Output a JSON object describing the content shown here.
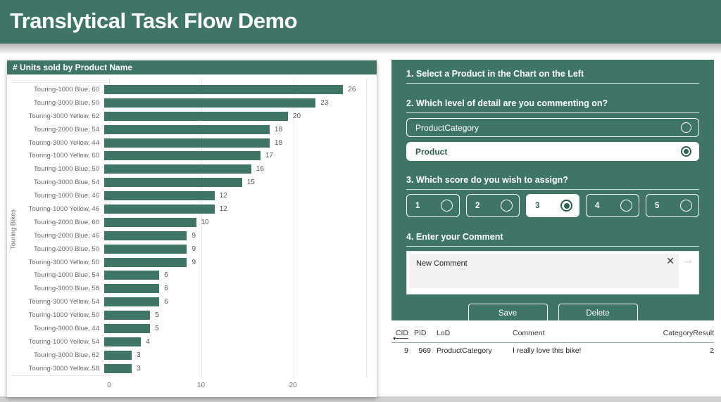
{
  "app": {
    "title": "Translytical Task Flow Demo"
  },
  "colors": {
    "accent_green": "#3e7566",
    "accent_green_dark": "#2b6154",
    "bar_color": "#3e7566",
    "table_rule": "#8fae9f"
  },
  "icons": {
    "clear": "✕",
    "send": "→",
    "sort_desc": "▼",
    "radio_unselected": "circle-outline",
    "radio_selected": "circle-dot"
  },
  "chart_data": {
    "type": "bar",
    "orientation": "horizontal",
    "title": "# Units sold by Product Name",
    "y_axis_title": "Touring Bikes",
    "categories": [
      "Touring-1000 Blue, 60",
      "Touring-3000 Blue, 50",
      "Touring-3000 Yellow, 62",
      "Touring-2000 Blue, 54",
      "Touring-3000 Yellow, 44",
      "Touring-1000 Yellow, 60",
      "Touring-1000 Blue, 50",
      "Touring-3000 Blue, 54",
      "Touring-1000 Blue, 46",
      "Touring-1000 Yellow, 46",
      "Touring-2000 Blue, 60",
      "Touring-2000 Blue, 46",
      "Touring-2000 Blue, 50",
      "Touring-3000 Yellow, 50",
      "Touring-1000 Blue, 54",
      "Touring-3000 Blue, 58",
      "Touring-3000 Yellow, 54",
      "Touring-1000 Yellow, 50",
      "Touring-3000 Blue, 44",
      "Touring-1000 Yellow, 54",
      "Touring-3000 Blue, 62",
      "Touring-3000 Yellow, 58"
    ],
    "values": [
      26,
      23,
      20,
      18,
      18,
      17,
      16,
      15,
      12,
      12,
      10,
      9,
      9,
      9,
      6,
      6,
      6,
      5,
      5,
      4,
      3,
      3
    ],
    "x_ticks": [
      0,
      10,
      20
    ],
    "xlim": [
      0,
      28
    ],
    "grid": "dotted-vertical",
    "data_labels": true
  },
  "panel": {
    "step1_title": "1. Select a Product in the Chart on the Left",
    "step2_title": "2. Which level of detail are you commenting on?",
    "lod_options": [
      {
        "label": "ProductCategory",
        "selected": false
      },
      {
        "label": "Product",
        "selected": true
      }
    ],
    "step3_title": "3. Which score do you wish to assign?",
    "score_options": [
      {
        "label": "1",
        "selected": false
      },
      {
        "label": "2",
        "selected": false
      },
      {
        "label": "3",
        "selected": true
      },
      {
        "label": "4",
        "selected": false
      },
      {
        "label": "5",
        "selected": false
      }
    ],
    "step4_title": "4. Enter your Comment",
    "comment_value": "New Comment",
    "save_label": "Save",
    "delete_label": "Delete"
  },
  "table": {
    "columns": [
      "CID",
      "PID",
      "LoD",
      "Comment",
      "CategoryResult"
    ],
    "sorted_column": "CID",
    "sort_direction": "desc",
    "rows": [
      [
        "9",
        "969",
        "ProductCategory",
        "I really love this bike!",
        "2"
      ]
    ]
  }
}
